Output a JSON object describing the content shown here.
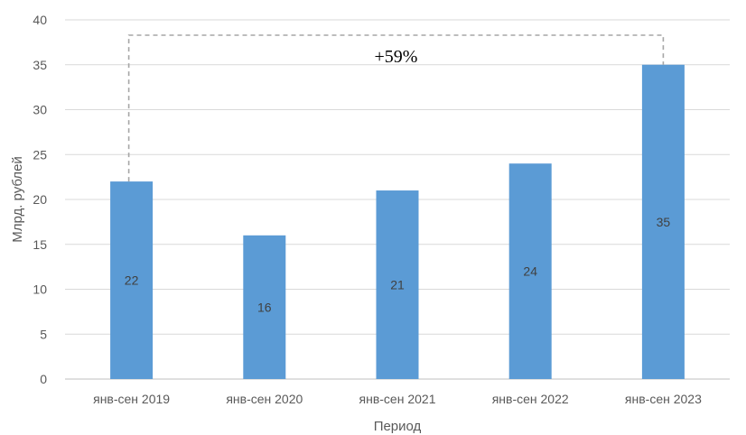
{
  "chart_data": {
    "type": "bar",
    "categories": [
      "янв-сен 2019",
      "янв-сен 2020",
      "янв-сен 2021",
      "янв-сен 2022",
      "янв-сен 2023"
    ],
    "values": [
      22,
      16,
      21,
      24,
      35
    ],
    "data_labels": [
      "22",
      "16",
      "21",
      "24",
      "35"
    ],
    "xlabel": "Период",
    "ylabel": "Млрд. рублей",
    "ylim": [
      0,
      40
    ],
    "y_ticks": [
      0,
      5,
      10,
      15,
      20,
      25,
      30,
      35,
      40
    ],
    "grid": true,
    "bar_color": "#5b9bd5",
    "annotation": {
      "text": "+59%",
      "from_category": "янв-сен 2019",
      "to_category": "янв-сен 2023",
      "style": "dashed-bracket"
    }
  }
}
